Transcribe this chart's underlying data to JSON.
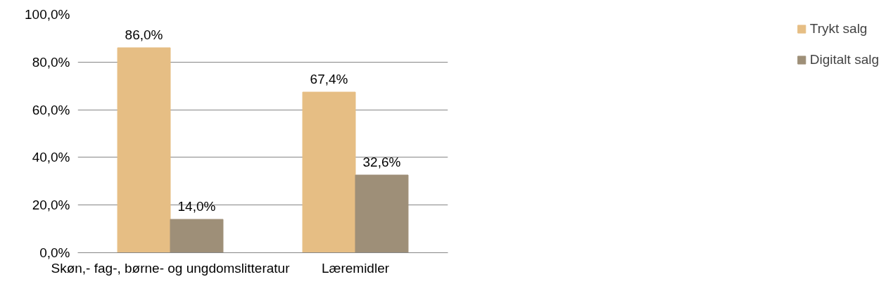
{
  "chart_data": {
    "type": "bar",
    "categories": [
      "Skøn,- fag-, børne- og ungdomslitteratur",
      "Læremidler"
    ],
    "series": [
      {
        "name": "Trykt salg",
        "color": "#e6be84",
        "values": [
          86.0,
          67.4
        ],
        "value_labels": [
          "86,0%",
          "67,4%"
        ]
      },
      {
        "name": "Digitalt salg",
        "color": "#9e8f78",
        "values": [
          14.0,
          32.6
        ],
        "value_labels": [
          "14,0%",
          "32,6%"
        ]
      }
    ],
    "ylim": [
      0,
      100
    ],
    "yticks": [
      {
        "value": 0,
        "label": "0,0%"
      },
      {
        "value": 20,
        "label": "20,0%"
      },
      {
        "value": 40,
        "label": "40,0%"
      },
      {
        "value": 60,
        "label": "60,0%"
      },
      {
        "value": 80,
        "label": "80,0%"
      },
      {
        "value": 100,
        "label": "100,0%"
      }
    ],
    "grid": "y",
    "legend": "right"
  }
}
